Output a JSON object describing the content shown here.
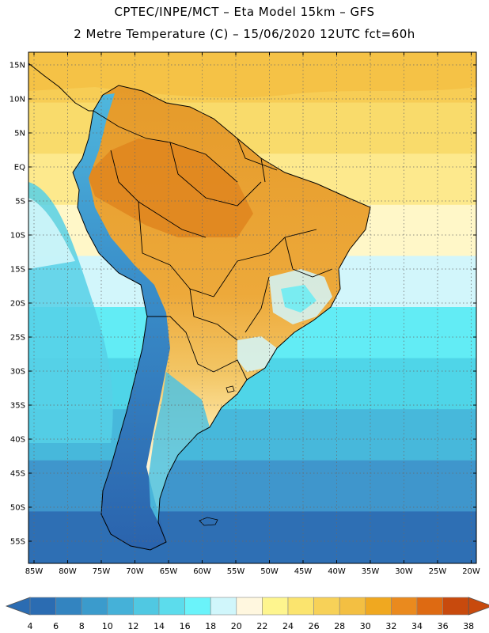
{
  "header": {
    "line1": "CPTEC/INPE/MCT –  Eta Model 15km – GFS",
    "line2": "2 Metre Temperature (C) – 15/06/2020 12UTC fct=60h"
  },
  "map": {
    "lat_labels": [
      "15N",
      "10N",
      "5N",
      "EQ",
      "5S",
      "10S",
      "15S",
      "20S",
      "25S",
      "30S",
      "35S",
      "40S",
      "45S",
      "50S",
      "55S"
    ],
    "lon_labels": [
      "85W",
      "80W",
      "75W",
      "70W",
      "65W",
      "60W",
      "55W",
      "50W",
      "45W",
      "40W",
      "35W",
      "30W",
      "25W",
      "20W"
    ],
    "ocean_bands": [
      {
        "color": "#f7cd55"
      },
      {
        "color": "#f9db6b"
      },
      {
        "color": "#fde98d"
      },
      {
        "color": "#fff7c8"
      },
      {
        "color": "#d2f6fb"
      },
      {
        "color": "#62ecf5"
      },
      {
        "color": "#4fd5e8"
      },
      {
        "color": "#47b8db"
      },
      {
        "color": "#3f96cc"
      },
      {
        "color": "#2e6fb4"
      }
    ]
  },
  "colorbar": {
    "labels": [
      "4",
      "6",
      "8",
      "10",
      "12",
      "14",
      "16",
      "18",
      "20",
      "22",
      "24",
      "26",
      "28",
      "30",
      "32",
      "34",
      "36",
      "38"
    ],
    "colors": [
      "#2b6cb2",
      "#3384c0",
      "#3b9bcc",
      "#45b1d8",
      "#50c8e2",
      "#5cdcec",
      "#6af3fa",
      "#d0f6fb",
      "#fff7df",
      "#fef58e",
      "#fbe46e",
      "#f7d158",
      "#f3bf42",
      "#f0a820",
      "#ea8a1e",
      "#de6a12",
      "#c84a0d"
    ],
    "end_low": "#2b6cb2",
    "end_high": "#c84a0d"
  }
}
